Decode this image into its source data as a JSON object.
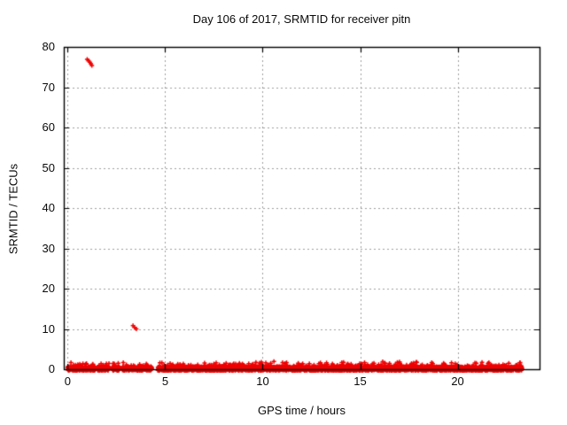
{
  "figure": {
    "background": "#ffffff"
  },
  "chart_data": {
    "type": "scatter",
    "title": "Day 106 of 2017, SRMTID for receiver pitn",
    "xlabel": "GPS time / hours",
    "ylabel": "SRMTID / TECUs",
    "xlim": [
      -0.2,
      24.2
    ],
    "ylim": [
      0,
      80
    ],
    "xticks": [
      0,
      5,
      10,
      15,
      20
    ],
    "yticks": [
      0,
      10,
      20,
      30,
      40,
      50,
      60,
      70,
      80
    ],
    "grid": {
      "shown": true,
      "color": "#9e9e9e",
      "style": "dotted"
    },
    "legend": {
      "shown": false
    },
    "marker": {
      "shape": "plus",
      "color": "#ee0000",
      "size": 5
    },
    "axis_color": "#000000",
    "series": [
      {
        "name": "SRMTID",
        "dense_band": {
          "x_start": 0.0,
          "x_end": 23.3,
          "y_base_min": -0.35,
          "y_base_max": 0.65,
          "bump_probability": 0.1,
          "bump_extra_max": 1.3,
          "points": 3700,
          "gaps": [
            [
              1.42,
              1.52
            ],
            [
              2.12,
              2.28
            ],
            [
              2.66,
              2.8
            ],
            [
              4.32,
              4.62
            ]
          ]
        },
        "outliers": [
          [
            1.0,
            76.9
          ],
          [
            1.07,
            76.6
          ],
          [
            1.13,
            76.2
          ],
          [
            1.19,
            75.8
          ],
          [
            1.24,
            75.4
          ],
          [
            3.35,
            10.8
          ],
          [
            3.43,
            10.4
          ],
          [
            3.52,
            10.0
          ]
        ]
      }
    ]
  }
}
